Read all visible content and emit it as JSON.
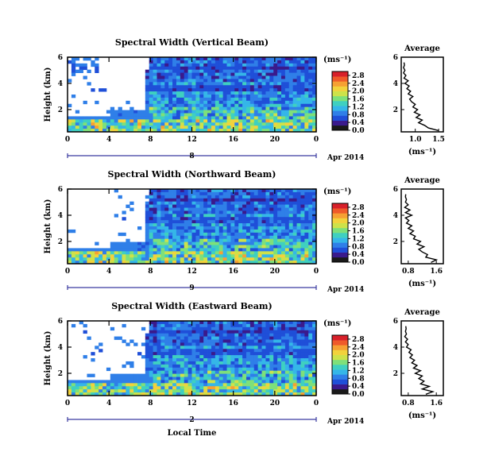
{
  "figure": {
    "xlabel": "Local Time",
    "date_label": "Apr 2014",
    "ylabel": "Height (km)",
    "unit_label": "(ms⁻¹)",
    "avg_title": "Average",
    "avg_xlabel": "(ms⁻¹)"
  },
  "colors": {
    "colormap": [
      "#1a1a1a",
      "#3a1a8c",
      "#1f4fd8",
      "#2f7fe8",
      "#35b6e8",
      "#3fd0c0",
      "#7ee07a",
      "#cde24a",
      "#f2d23c",
      "#f6a033",
      "#ef5a2a",
      "#d8202a"
    ],
    "missing": "#ffffff"
  },
  "chart_data": [
    {
      "type": "heatmap",
      "title": "Spectral Width (Vertical Beam)",
      "x_ticks": [
        "0",
        "4",
        "8",
        "12",
        "16",
        "20",
        "0"
      ],
      "day_label": "8",
      "xlim": [
        0,
        24
      ],
      "y_ticks": [
        "6",
        "4",
        "2"
      ],
      "ylim": [
        0.3,
        6
      ],
      "colorbar_ticks": [
        "2.8",
        "2.4",
        "2.0",
        "1.6",
        "1.2",
        "0.8",
        "0.4",
        "0.0"
      ],
      "clim": [
        0,
        3.0
      ],
      "avg_x_ticks": [
        "1.0",
        "1.5"
      ],
      "avg_xlim": [
        0.7,
        1.6
      ],
      "avg_profile": {
        "height": [
          0.4,
          0.6,
          0.8,
          1.0,
          1.2,
          1.4,
          1.6,
          1.8,
          2.0,
          2.2,
          2.4,
          2.6,
          2.8,
          3.0,
          3.2,
          3.4,
          3.6,
          3.8,
          4.0,
          4.2,
          4.4,
          4.6,
          4.8,
          5.0,
          5.2,
          5.4,
          5.6
        ],
        "value": [
          1.5,
          1.28,
          1.2,
          1.07,
          1.15,
          1.02,
          1.1,
          0.98,
          1.05,
          0.95,
          1.0,
          0.92,
          0.88,
          0.95,
          0.85,
          0.9,
          0.82,
          0.87,
          0.78,
          0.85,
          0.76,
          0.8,
          0.75,
          0.78,
          0.75,
          0.77,
          0.76
        ]
      }
    },
    {
      "type": "heatmap",
      "title": "Spectral Width (Northward Beam)",
      "x_ticks": [
        "0",
        "4",
        "8",
        "12",
        "16",
        "20",
        "0"
      ],
      "day_label": "9",
      "xlim": [
        0,
        24
      ],
      "y_ticks": [
        "6",
        "4",
        "2"
      ],
      "ylim": [
        0.3,
        6
      ],
      "colorbar_ticks": [
        "2.8",
        "2.4",
        "2.0",
        "1.6",
        "1.2",
        "0.8",
        "0.4",
        "0.0"
      ],
      "clim": [
        0,
        3.0
      ],
      "avg_x_ticks": [
        "0.8",
        "1.6"
      ],
      "avg_xlim": [
        0.6,
        1.8
      ],
      "avg_profile": {
        "height": [
          0.4,
          0.6,
          0.8,
          1.0,
          1.2,
          1.4,
          1.6,
          1.8,
          2.0,
          2.2,
          2.4,
          2.6,
          2.8,
          3.0,
          3.2,
          3.4,
          3.6,
          3.8,
          4.0,
          4.2,
          4.4,
          4.6,
          4.8,
          5.0,
          5.2,
          5.4,
          5.6
        ],
        "value": [
          1.45,
          1.6,
          1.3,
          1.35,
          1.2,
          1.1,
          1.25,
          1.05,
          1.15,
          0.95,
          1.0,
          0.85,
          0.95,
          0.8,
          0.9,
          0.75,
          0.82,
          0.72,
          0.9,
          0.72,
          0.85,
          0.7,
          0.8,
          0.72,
          0.75,
          0.72,
          0.73
        ]
      }
    },
    {
      "type": "heatmap",
      "title": "Spectral Width (Eastward Beam)",
      "x_ticks": [
        "0",
        "4",
        "8",
        "12",
        "16",
        "20",
        "0"
      ],
      "day_label": "2",
      "xlim": [
        0,
        24
      ],
      "y_ticks": [
        "6",
        "4",
        "2"
      ],
      "ylim": [
        0.3,
        6
      ],
      "colorbar_ticks": [
        "2.8",
        "2.4",
        "2.0",
        "1.6",
        "1.2",
        "0.8",
        "0.4",
        "0.0"
      ],
      "clim": [
        0,
        3.0
      ],
      "avg_x_ticks": [
        "0.8",
        "1.6"
      ],
      "avg_xlim": [
        0.6,
        1.8
      ],
      "avg_profile": {
        "height": [
          0.4,
          0.6,
          0.8,
          1.0,
          1.2,
          1.4,
          1.6,
          1.8,
          2.0,
          2.2,
          2.4,
          2.6,
          2.8,
          3.0,
          3.2,
          3.4,
          3.6,
          3.8,
          4.0,
          4.2,
          4.4,
          4.6,
          4.8,
          5.0,
          5.2,
          5.4,
          5.6
        ],
        "value": [
          1.3,
          1.5,
          1.2,
          1.4,
          1.15,
          1.25,
          1.1,
          1.2,
          1.0,
          1.15,
          0.95,
          1.05,
          0.9,
          0.98,
          0.85,
          0.92,
          0.82,
          0.88,
          0.75,
          0.8,
          0.72,
          0.78,
          0.7,
          0.75,
          0.72,
          0.74,
          0.73
        ]
      }
    }
  ]
}
